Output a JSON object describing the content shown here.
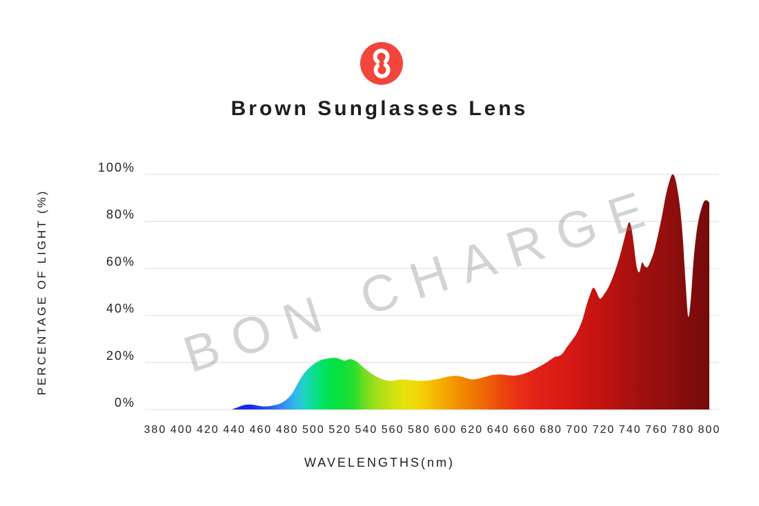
{
  "header": {
    "title": "Brown Sunglasses Lens",
    "logo": {
      "icon": "bon-charge-8-icon",
      "background_color": "#f2453b",
      "glyph_color": "#ffffff"
    }
  },
  "watermark": "BON CHARGE",
  "colors": {
    "grid": "#e4e4e4",
    "axis_text": "#222228",
    "watermark_gray": "#777777",
    "title_text": "#1c1c22"
  },
  "chart_data": {
    "type": "area",
    "title": "Brown Sunglasses Lens",
    "xlabel": "WAVELENGTHS(nm)",
    "ylabel": "PERCENTAGE OF LIGHT (%)",
    "xlim": [
      380,
      800
    ],
    "ylim": [
      0,
      100
    ],
    "grid": "horizontal",
    "legend": "none",
    "series_name": "brown-lens-light-transmission",
    "xticks": [
      "380",
      "400",
      "420",
      "440",
      "460",
      "480",
      "500",
      "520",
      "540",
      "560",
      "580",
      "600",
      "620",
      "640",
      "660",
      "680",
      "700",
      "720",
      "740",
      "760",
      "780",
      "800"
    ],
    "yticks": [
      {
        "value": 0,
        "label": "0%"
      },
      {
        "value": 20,
        "label": "20%"
      },
      {
        "value": 40,
        "label": "40%"
      },
      {
        "value": 60,
        "label": "60%"
      },
      {
        "value": 80,
        "label": "80%"
      },
      {
        "value": 100,
        "label": "100%"
      }
    ],
    "points": [
      [
        438,
        0
      ],
      [
        442,
        0.8
      ],
      [
        446,
        1.7
      ],
      [
        450,
        2.1
      ],
      [
        454,
        2.0
      ],
      [
        458,
        1.6
      ],
      [
        462,
        1.3
      ],
      [
        466,
        1.4
      ],
      [
        470,
        1.8
      ],
      [
        474,
        2.4
      ],
      [
        478,
        3.6
      ],
      [
        481,
        5.0
      ],
      [
        484,
        7.0
      ],
      [
        487,
        10.0
      ],
      [
        490,
        13.0
      ],
      [
        493,
        15.5
      ],
      [
        496,
        17.3
      ],
      [
        499,
        18.8
      ],
      [
        502,
        20.0
      ],
      [
        505,
        20.9
      ],
      [
        508,
        21.4
      ],
      [
        512,
        21.8
      ],
      [
        516,
        22.0
      ],
      [
        519,
        21.7
      ],
      [
        523,
        20.8
      ],
      [
        526,
        21.2
      ],
      [
        528,
        21.4
      ],
      [
        531,
        20.9
      ],
      [
        534,
        19.8
      ],
      [
        537,
        18.3
      ],
      [
        540,
        16.9
      ],
      [
        544,
        15.2
      ],
      [
        548,
        13.9
      ],
      [
        552,
        12.9
      ],
      [
        556,
        12.3
      ],
      [
        560,
        12.2
      ],
      [
        564,
        12.6
      ],
      [
        568,
        12.8
      ],
      [
        572,
        12.6
      ],
      [
        576,
        12.3
      ],
      [
        580,
        12.2
      ],
      [
        584,
        12.2
      ],
      [
        588,
        12.4
      ],
      [
        592,
        12.8
      ],
      [
        596,
        13.2
      ],
      [
        600,
        13.8
      ],
      [
        604,
        14.2
      ],
      [
        608,
        14.3
      ],
      [
        612,
        14.0
      ],
      [
        616,
        13.3
      ],
      [
        620,
        12.8
      ],
      [
        624,
        13.0
      ],
      [
        628,
        13.6
      ],
      [
        632,
        14.2
      ],
      [
        636,
        14.7
      ],
      [
        640,
        14.9
      ],
      [
        644,
        14.8
      ],
      [
        648,
        14.5
      ],
      [
        652,
        14.4
      ],
      [
        656,
        14.7
      ],
      [
        660,
        15.3
      ],
      [
        664,
        16.2
      ],
      [
        668,
        17.3
      ],
      [
        672,
        18.5
      ],
      [
        676,
        19.8
      ],
      [
        680,
        21.3
      ],
      [
        683,
        22.4
      ],
      [
        686,
        22.7
      ],
      [
        689,
        24.0
      ],
      [
        692,
        26.5
      ],
      [
        696,
        29.5
      ],
      [
        700,
        33.0
      ],
      [
        704,
        38.5
      ],
      [
        707,
        44.5
      ],
      [
        710,
        49.5
      ],
      [
        712,
        51.8
      ],
      [
        714,
        50.5
      ],
      [
        717,
        47.2
      ],
      [
        720,
        48.8
      ],
      [
        724,
        52.5
      ],
      [
        728,
        58.0
      ],
      [
        732,
        65.0
      ],
      [
        736,
        73.5
      ],
      [
        739,
        79.5
      ],
      [
        741,
        77.0
      ],
      [
        743,
        69.0
      ],
      [
        745,
        60.5
      ],
      [
        747,
        58.5
      ],
      [
        749,
        62.5
      ],
      [
        751,
        61.0
      ],
      [
        753,
        60.5
      ],
      [
        755,
        62.5
      ],
      [
        758,
        67.0
      ],
      [
        761,
        74.0
      ],
      [
        764,
        82.0
      ],
      [
        767,
        91.0
      ],
      [
        770,
        97.5
      ],
      [
        772,
        100
      ],
      [
        774,
        98.5
      ],
      [
        776,
        93.0
      ],
      [
        778,
        85.0
      ],
      [
        780,
        72.0
      ],
      [
        782,
        54.0
      ],
      [
        784,
        39.5
      ],
      [
        786,
        47.0
      ],
      [
        788,
        63.0
      ],
      [
        790,
        74.0
      ],
      [
        792,
        81.0
      ],
      [
        794,
        85.5
      ],
      [
        796,
        88.5
      ],
      [
        798,
        89.0
      ],
      [
        800,
        88.0
      ]
    ],
    "spectrum_gradient": [
      {
        "at": 438,
        "color": "#1d1de8"
      },
      {
        "at": 452,
        "color": "#1c2aea"
      },
      {
        "at": 462,
        "color": "#2346ee"
      },
      {
        "at": 470,
        "color": "#2a6cf1"
      },
      {
        "at": 478,
        "color": "#3392f3"
      },
      {
        "at": 486,
        "color": "#33b7ec"
      },
      {
        "at": 493,
        "color": "#21d2c4"
      },
      {
        "at": 500,
        "color": "#0cdf93"
      },
      {
        "at": 507,
        "color": "#02e264"
      },
      {
        "at": 514,
        "color": "#04e146"
      },
      {
        "at": 522,
        "color": "#0ee03a"
      },
      {
        "at": 531,
        "color": "#2ade2e"
      },
      {
        "at": 538,
        "color": "#6cdc22"
      },
      {
        "at": 548,
        "color": "#a4de1a"
      },
      {
        "at": 558,
        "color": "#c8e113"
      },
      {
        "at": 568,
        "color": "#e4e30d"
      },
      {
        "at": 578,
        "color": "#f2d808"
      },
      {
        "at": 588,
        "color": "#f5c204"
      },
      {
        "at": 598,
        "color": "#f5ab01"
      },
      {
        "at": 608,
        "color": "#f39200"
      },
      {
        "at": 620,
        "color": "#f07a00"
      },
      {
        "at": 632,
        "color": "#ee6106"
      },
      {
        "at": 644,
        "color": "#eb440e"
      },
      {
        "at": 656,
        "color": "#e72e15"
      },
      {
        "at": 668,
        "color": "#e32319"
      },
      {
        "at": 682,
        "color": "#dd1c15"
      },
      {
        "at": 696,
        "color": "#d41813"
      },
      {
        "at": 710,
        "color": "#c81511"
      },
      {
        "at": 724,
        "color": "#bb1310"
      },
      {
        "at": 738,
        "color": "#ab110f"
      },
      {
        "at": 752,
        "color": "#9e100e"
      },
      {
        "at": 766,
        "color": "#930f0e"
      },
      {
        "at": 780,
        "color": "#850d0d"
      },
      {
        "at": 790,
        "color": "#7d0c0c"
      },
      {
        "at": 800,
        "color": "#750b0b"
      }
    ]
  }
}
